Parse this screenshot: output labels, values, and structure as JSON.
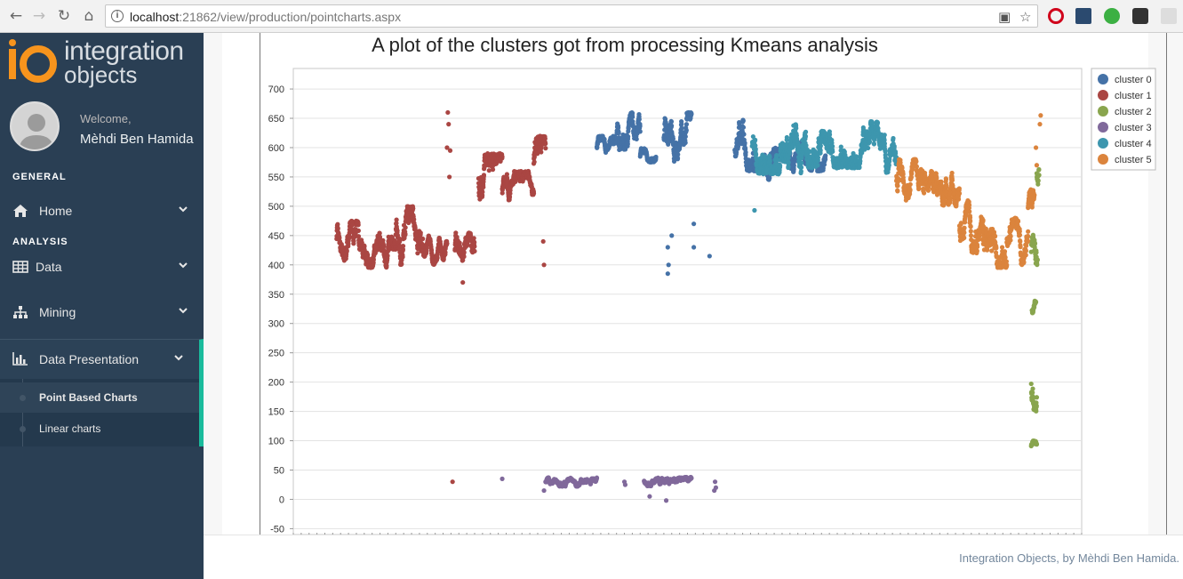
{
  "browser": {
    "url_host": "localhost",
    "url_path": ":21862/view/production/pointcharts.aspx"
  },
  "sidebar": {
    "logo_line1": "integration",
    "logo_line2": "objects",
    "welcome": "Welcome,",
    "username": "Mèhdi Ben Hamida",
    "sections": {
      "general": "GENERAL",
      "analysis": "ANALYSIS"
    },
    "menu": {
      "home": "Home",
      "data": "Data",
      "mining": "Mining",
      "data_presentation": "Data Presentation"
    },
    "submenu": {
      "point_based": "Point Based Charts",
      "linear": "Linear charts"
    }
  },
  "footer": {
    "text": "Integration Objects, by Mèhdi Ben Hamida."
  },
  "chart_data": {
    "type": "scatter",
    "title": "A plot of the clusters got from processing Kmeans analysis",
    "xlabel": "",
    "ylabel": "",
    "ylim": [
      -60,
      735
    ],
    "xlim": [
      0,
      100
    ],
    "y_ticks": [
      -50,
      0,
      50,
      100,
      150,
      200,
      250,
      300,
      350,
      400,
      450,
      500,
      550,
      600,
      650,
      700
    ],
    "grid": true,
    "legend_position": "top-right",
    "series": [
      {
        "name": "cluster 0",
        "color": "#4572a7",
        "segments": [
          {
            "x0": 38.5,
            "x1": 41,
            "ymin": 580,
            "ymax": 620
          },
          {
            "x0": 41,
            "x1": 44,
            "ymin": 585,
            "ymax": 660
          },
          {
            "x0": 44,
            "x1": 46,
            "ymin": 575,
            "ymax": 600
          },
          {
            "x0": 47,
            "x1": 50.5,
            "ymin": 575,
            "ymax": 660
          },
          {
            "x0": 56,
            "x1": 59,
            "ymin": 560,
            "ymax": 650
          },
          {
            "x0": 59,
            "x1": 64,
            "ymin": 545,
            "ymax": 600
          },
          {
            "x0": 64,
            "x1": 67.5,
            "ymin": 560,
            "ymax": 610
          }
        ],
        "points": [
          [
            47.5,
            430
          ],
          [
            47.5,
            385
          ],
          [
            47.6,
            400
          ],
          [
            50.8,
            470
          ],
          [
            50.8,
            430
          ],
          [
            52.8,
            415
          ],
          [
            48,
            450
          ]
        ]
      },
      {
        "name": "cluster 1",
        "color": "#aa4643",
        "segments": [
          {
            "x0": 5.5,
            "x1": 9,
            "ymin": 395,
            "ymax": 475
          },
          {
            "x0": 9,
            "x1": 13,
            "ymin": 395,
            "ymax": 460
          },
          {
            "x0": 13,
            "x1": 16.5,
            "ymin": 400,
            "ymax": 500
          },
          {
            "x0": 16.5,
            "x1": 19.5,
            "ymin": 400,
            "ymax": 450
          },
          {
            "x0": 20.5,
            "x1": 23,
            "ymin": 390,
            "ymax": 455
          },
          {
            "x0": 23.5,
            "x1": 26.5,
            "ymin": 495,
            "ymax": 590
          },
          {
            "x0": 26.5,
            "x1": 30.5,
            "ymin": 500,
            "ymax": 560
          },
          {
            "x0": 30.5,
            "x1": 32,
            "ymin": 540,
            "ymax": 620
          }
        ],
        "points": [
          [
            19.6,
            660
          ],
          [
            19.7,
            640
          ],
          [
            19.5,
            600
          ],
          [
            19.9,
            595
          ],
          [
            19.8,
            550
          ],
          [
            21.5,
            370
          ],
          [
            31.7,
            440
          ],
          [
            31.8,
            400
          ],
          [
            20.2,
            30
          ]
        ]
      },
      {
        "name": "cluster 2",
        "color": "#89a54e",
        "segments": [
          {
            "x0": 93.6,
            "x1": 94.3,
            "ymin": 80,
            "ymax": 100
          },
          {
            "x0": 93.6,
            "x1": 94.3,
            "ymin": 150,
            "ymax": 270
          },
          {
            "x0": 93.7,
            "x1": 94.2,
            "ymin": 310,
            "ymax": 340
          },
          {
            "x0": 93.6,
            "x1": 94.4,
            "ymin": 380,
            "ymax": 480
          },
          {
            "x0": 94.3,
            "x1": 94.6,
            "ymin": 520,
            "ymax": 600
          }
        ],
        "points": []
      },
      {
        "name": "cluster 3",
        "color": "#80699b",
        "segments": [
          {
            "x0": 32,
            "x1": 38.5,
            "ymin": 22,
            "ymax": 38
          },
          {
            "x0": 44.5,
            "x1": 50.5,
            "ymin": 22,
            "ymax": 38
          }
        ],
        "points": [
          [
            26.5,
            35
          ],
          [
            31.8,
            15
          ],
          [
            42,
            30
          ],
          [
            42.1,
            25
          ],
          [
            45.2,
            5
          ],
          [
            47.3,
            -2
          ],
          [
            53.5,
            30
          ],
          [
            53.4,
            15
          ],
          [
            53.6,
            20
          ]
        ]
      },
      {
        "name": "cluster 4",
        "color": "#3d96ae",
        "segments": [
          {
            "x0": 58.2,
            "x1": 65,
            "ymin": 555,
            "ymax": 640
          },
          {
            "x0": 65,
            "x1": 75,
            "ymin": 565,
            "ymax": 645
          },
          {
            "x0": 75,
            "x1": 76.5,
            "ymin": 555,
            "ymax": 640
          }
        ],
        "points": [
          [
            58.5,
            493
          ]
        ]
      },
      {
        "name": "cluster 5",
        "color": "#db843d",
        "segments": [
          {
            "x0": 76.5,
            "x1": 80,
            "ymin": 500,
            "ymax": 580
          },
          {
            "x0": 80,
            "x1": 84.5,
            "ymin": 500,
            "ymax": 580
          },
          {
            "x0": 84.5,
            "x1": 87.5,
            "ymin": 420,
            "ymax": 510
          },
          {
            "x0": 87.5,
            "x1": 90.5,
            "ymin": 395,
            "ymax": 500
          },
          {
            "x0": 90.5,
            "x1": 93.2,
            "ymin": 400,
            "ymax": 480
          },
          {
            "x0": 93.2,
            "x1": 94,
            "ymin": 470,
            "ymax": 530
          }
        ],
        "points": [
          [
            94.8,
            655
          ],
          [
            94.7,
            640
          ],
          [
            94.2,
            600
          ],
          [
            94.3,
            570
          ]
        ]
      }
    ]
  }
}
